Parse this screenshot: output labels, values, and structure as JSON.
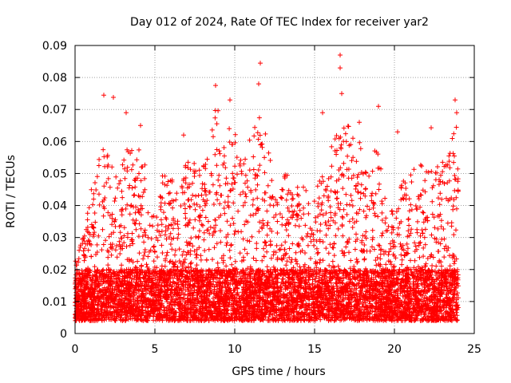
{
  "chart_data": {
    "type": "scatter",
    "title": "Day 012 of 2024, Rate Of TEC Index for receiver yar2",
    "xlabel": "GPS time / hours",
    "ylabel": "ROTI / TECUs",
    "xlim": [
      0,
      25
    ],
    "ylim": [
      0,
      0.09
    ],
    "xticks": [
      0,
      5,
      10,
      15,
      20,
      25
    ],
    "xtick_labels": [
      "0",
      "5",
      "10",
      "15",
      "20",
      "25"
    ],
    "yticks": [
      0,
      0.01,
      0.02,
      0.03,
      0.04,
      0.05,
      0.06,
      0.07,
      0.08,
      0.09
    ],
    "ytick_labels": [
      "0",
      "0.01",
      "0.02",
      "0.03",
      "0.04",
      "0.05",
      "0.06",
      "0.07",
      "0.08",
      "0.09"
    ],
    "grid": true,
    "marker": "+",
    "color": "#ff0000",
    "data_range": [
      0,
      24
    ],
    "baseline_range": [
      0.004,
      0.02
    ],
    "notable_points": [
      {
        "x": 1.8,
        "y": 0.0745
      },
      {
        "x": 2.4,
        "y": 0.0738
      },
      {
        "x": 3.2,
        "y": 0.069
      },
      {
        "x": 4.1,
        "y": 0.065
      },
      {
        "x": 6.8,
        "y": 0.062
      },
      {
        "x": 8.8,
        "y": 0.0775
      },
      {
        "x": 9.7,
        "y": 0.073
      },
      {
        "x": 11.6,
        "y": 0.0845
      },
      {
        "x": 11.5,
        "y": 0.078
      },
      {
        "x": 15.5,
        "y": 0.069
      },
      {
        "x": 16.6,
        "y": 0.087
      },
      {
        "x": 16.6,
        "y": 0.083
      },
      {
        "x": 16.7,
        "y": 0.075
      },
      {
        "x": 17.8,
        "y": 0.066
      },
      {
        "x": 19.0,
        "y": 0.071
      },
      {
        "x": 20.2,
        "y": 0.063
      },
      {
        "x": 22.3,
        "y": 0.0643
      },
      {
        "x": 23.8,
        "y": 0.073
      },
      {
        "x": 23.9,
        "y": 0.069
      }
    ]
  }
}
